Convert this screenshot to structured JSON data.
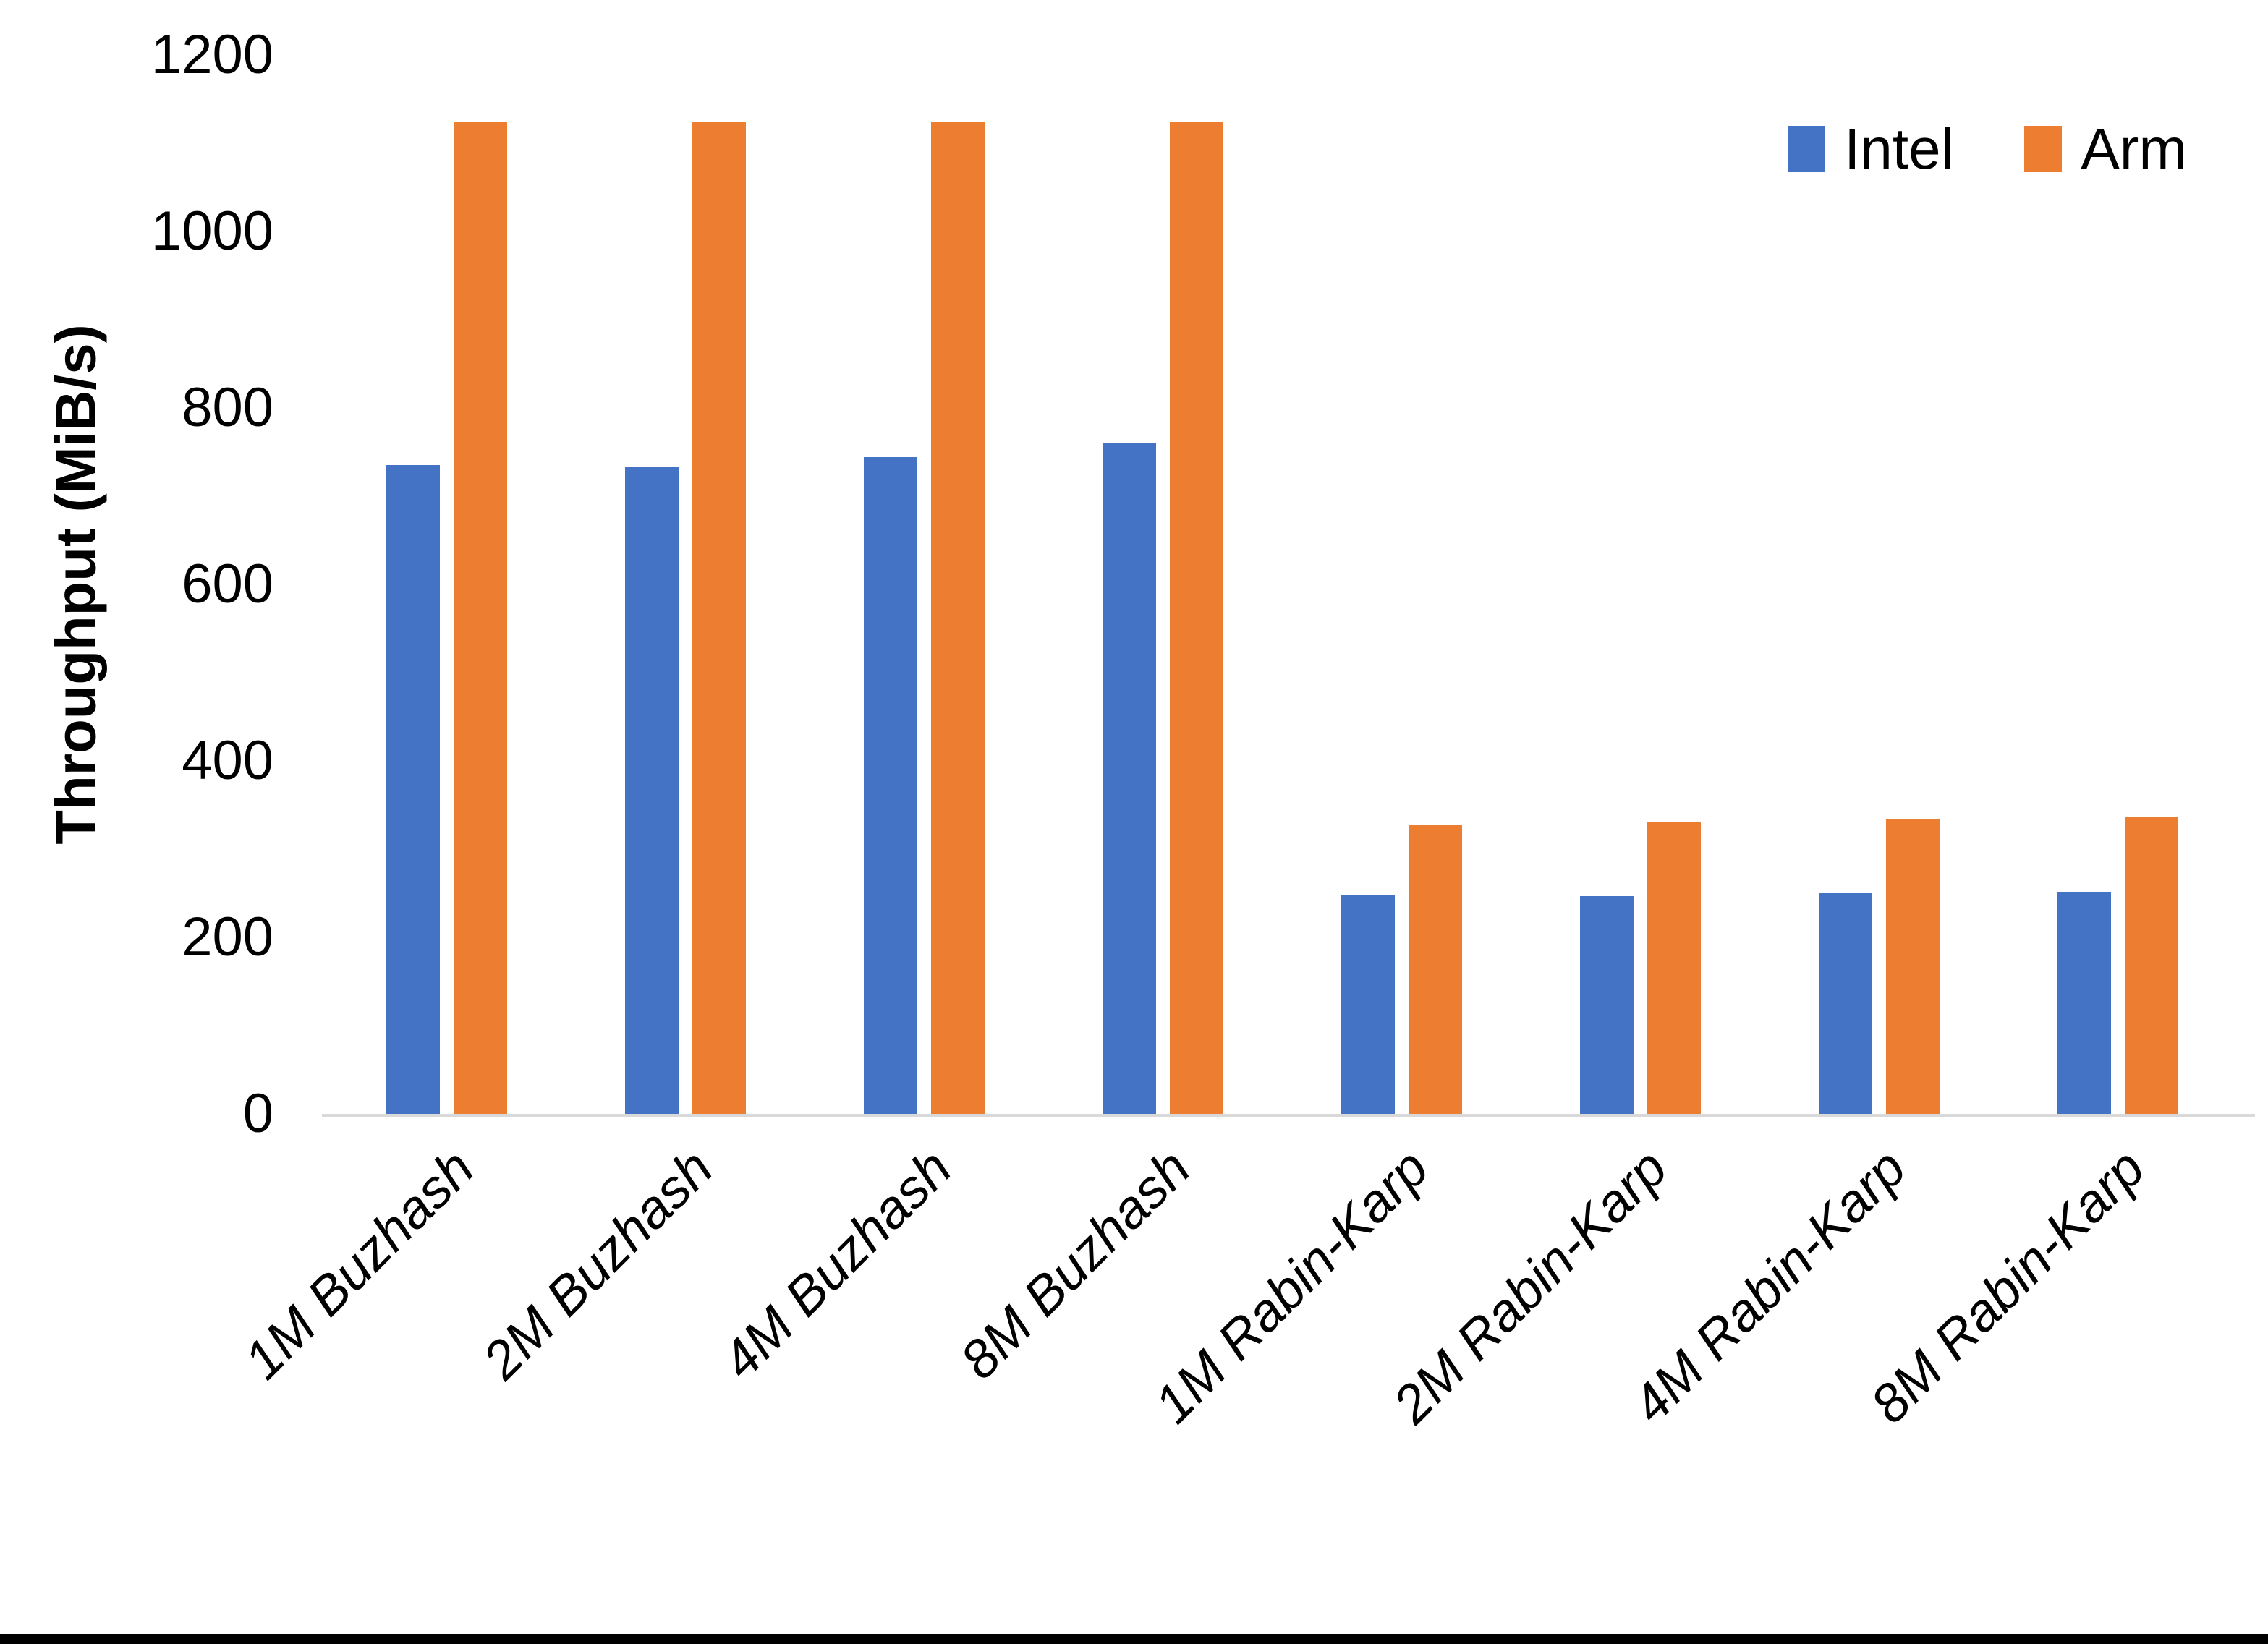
{
  "page": {
    "background_color": "#FFFFFF",
    "bottom_edge_color": "#000000"
  },
  "chart_data": {
    "type": "bar",
    "title": "",
    "xlabel": "",
    "ylabel": "Throughput (MiB/s)",
    "ylim": [
      0,
      1200
    ],
    "yticks": [
      0,
      200,
      400,
      600,
      800,
      1000,
      1200
    ],
    "grid": false,
    "legend_position": "top-right",
    "axis_line_color": "#D9D9D9",
    "text_color": "#000000",
    "categories": [
      "1M Buzhash",
      "2M Buzhash",
      "4M Buzhash",
      "8M Buzhash",
      "1M Rabin-Karp",
      "2M Rabin-Karp",
      "4M Rabin-Karp",
      "8M Rabin-Karp"
    ],
    "series": [
      {
        "name": "Intel",
        "color": "#4472C4",
        "values": [
          735,
          734,
          744,
          760,
          248,
          247,
          250,
          252
        ]
      },
      {
        "name": "Arm",
        "color": "#ED7D31",
        "values": [
          1125,
          1125,
          1125,
          1125,
          327,
          330,
          334,
          336
        ]
      }
    ]
  }
}
